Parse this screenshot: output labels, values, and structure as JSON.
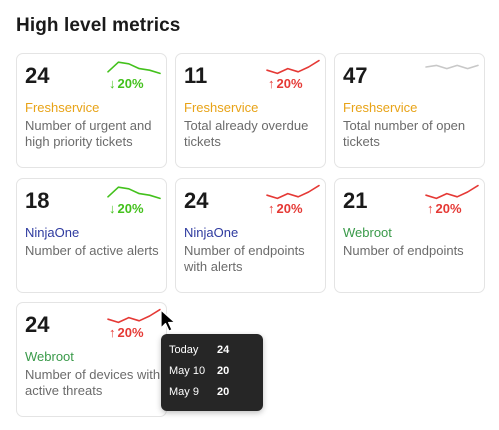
{
  "title": "High level metrics",
  "colors": {
    "good": "#43c11c",
    "bad": "#e53935",
    "neutral": "#c8c8c8",
    "freshservice": "#e8a317",
    "ninjaone": "#2e3a9f",
    "webroot": "#3a9a4a"
  },
  "cards": [
    {
      "value": "24",
      "delta": "20%",
      "direction": "down",
      "trend": "good",
      "source": "Freshservice",
      "source_color": "freshservice",
      "desc": "Number of urgent and high priority tickets",
      "spark": [
        8,
        2,
        3,
        6,
        7,
        9
      ]
    },
    {
      "value": "11",
      "delta": "20%",
      "direction": "up",
      "trend": "bad",
      "source": "Freshservice",
      "source_color": "freshservice",
      "desc": "Total already overdue tickets",
      "spark": [
        7,
        9,
        6,
        8,
        5,
        1
      ]
    },
    {
      "value": "47",
      "delta": "",
      "direction": "",
      "trend": "neutral",
      "source": "Freshservice",
      "source_color": "freshservice",
      "desc": "Total number of open tickets",
      "spark": [
        5,
        4,
        6,
        4,
        6,
        4
      ]
    },
    {
      "value": "18",
      "delta": "20%",
      "direction": "down",
      "trend": "good",
      "source": "NinjaOne",
      "source_color": "ninjaone",
      "desc": "Number of active alerts",
      "spark": [
        8,
        2,
        3,
        6,
        7,
        9
      ]
    },
    {
      "value": "24",
      "delta": "20%",
      "direction": "up",
      "trend": "bad",
      "source": "NinjaOne",
      "source_color": "ninjaone",
      "desc": "Number of endpoints with alerts",
      "spark": [
        7,
        9,
        6,
        8,
        5,
        1
      ]
    },
    {
      "value": "21",
      "delta": "20%",
      "direction": "up",
      "trend": "bad",
      "source": "Webroot",
      "source_color": "webroot",
      "desc": "Number of endpoints",
      "spark": [
        7,
        9,
        6,
        8,
        5,
        1
      ]
    },
    {
      "value": "24",
      "delta": "20%",
      "direction": "up",
      "trend": "bad",
      "source": "Webroot",
      "source_color": "webroot",
      "desc": "Number of devices with active threats",
      "spark": [
        7,
        9,
        6,
        8,
        5,
        1
      ]
    }
  ],
  "tooltip": {
    "rows": [
      {
        "label": "Today",
        "value": "24"
      },
      {
        "label": "May 10",
        "value": "20"
      },
      {
        "label": "May 9",
        "value": "20"
      }
    ]
  }
}
